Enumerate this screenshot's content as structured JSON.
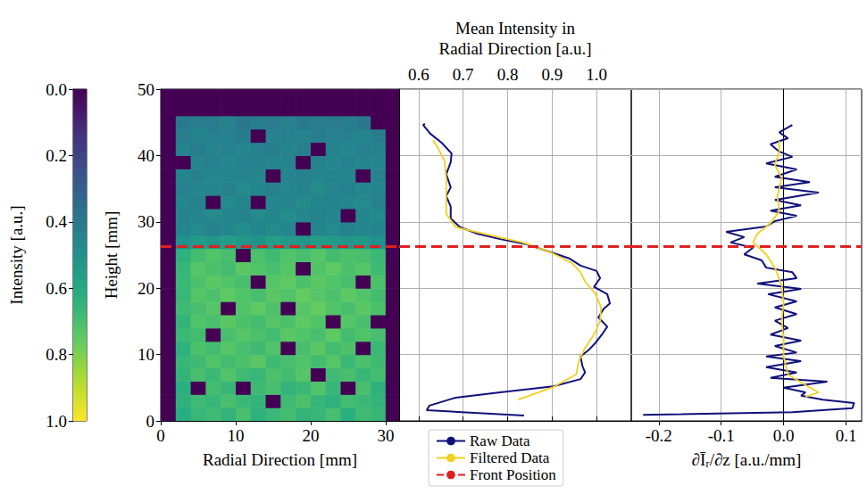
{
  "chart_data": [
    {
      "type": "heatmap",
      "xlabel": "Radial Direction [mm]",
      "ylabel": "Height [mm]",
      "xlim": [
        0,
        31.8
      ],
      "ylim": [
        0,
        50
      ],
      "xticks": [
        0,
        10,
        20,
        30
      ],
      "yticks": [
        0,
        10,
        20,
        30,
        40,
        50
      ],
      "x": [
        1,
        3,
        5,
        7,
        9,
        11,
        13,
        15,
        17,
        19,
        21,
        23,
        25,
        27,
        29,
        31
      ],
      "y": [
        1,
        3,
        5,
        7,
        9,
        11,
        13,
        15,
        17,
        19,
        21,
        23,
        25,
        27,
        29,
        31,
        33,
        35,
        37,
        39,
        41,
        43,
        45,
        47,
        49
      ],
      "values": [
        [
          0,
          0.62,
          0.66,
          0.68,
          0.65,
          0.7,
          0.64,
          0.67,
          0.69,
          0.65,
          0.66,
          0.7,
          0.63,
          0.68,
          0.66,
          0
        ],
        [
          0,
          0.64,
          0.68,
          0.66,
          0.7,
          0.67,
          0.65,
          0,
          0.68,
          0.71,
          0.66,
          0.64,
          0.69,
          0.67,
          0.65,
          0
        ],
        [
          0,
          0.63,
          0,
          0.69,
          0.66,
          0,
          0.68,
          0.7,
          0.65,
          0.67,
          0.72,
          0.66,
          0,
          0.7,
          0.64,
          0
        ],
        [
          0,
          0.65,
          0.7,
          0.67,
          0.72,
          0.68,
          0.66,
          0.71,
          0.69,
          0.73,
          0,
          0.68,
          0.7,
          0.66,
          0.69,
          0
        ],
        [
          0,
          0.66,
          0.68,
          0.72,
          0.69,
          0.71,
          0.74,
          0.68,
          0.7,
          0.72,
          0.69,
          0.73,
          0.67,
          0.71,
          0.68,
          0
        ],
        [
          0,
          0.64,
          0.71,
          0.69,
          0.73,
          0.7,
          0.68,
          0.72,
          0,
          0.7,
          0.74,
          0.69,
          0.71,
          0,
          0.67,
          0
        ],
        [
          0,
          0.67,
          0.69,
          0,
          0.7,
          0.73,
          0.71,
          0.69,
          0.74,
          0.72,
          0.7,
          0.75,
          0.69,
          0.72,
          0.7,
          0
        ],
        [
          0,
          0.65,
          0.72,
          0.7,
          0.74,
          0.71,
          0.69,
          0.73,
          0.71,
          0.75,
          0.72,
          0,
          0.73,
          0.7,
          0,
          0
        ],
        [
          0,
          0.68,
          0.7,
          0.73,
          0,
          0.72,
          0.75,
          0.71,
          0,
          0.73,
          0.76,
          0.72,
          0.7,
          0.74,
          0.71,
          0
        ],
        [
          0,
          0.66,
          0.73,
          0.71,
          0.75,
          0.72,
          0.7,
          0.74,
          0.72,
          0.76,
          0.73,
          0.71,
          0.75,
          0.72,
          0.69,
          0
        ],
        [
          0,
          0.67,
          0.71,
          0.74,
          0.72,
          0.7,
          0,
          0.73,
          0.75,
          0.71,
          0.74,
          0.72,
          0.7,
          0,
          0.71,
          0
        ],
        [
          0,
          0.66,
          0.73,
          0.71,
          0.69,
          0.74,
          0.72,
          0.7,
          0.73,
          0,
          0.72,
          0.75,
          0.71,
          0.73,
          0.68,
          0
        ],
        [
          0,
          0.64,
          0.69,
          0.72,
          0.7,
          0,
          0.71,
          0.68,
          0.72,
          0.7,
          0.73,
          0.69,
          0.71,
          0.7,
          0.67,
          0
        ],
        [
          0,
          0.5,
          0.54,
          0.52,
          0.55,
          0.53,
          0.51,
          0.56,
          0.53,
          0.52,
          0.55,
          0.54,
          0.52,
          0.53,
          0.5,
          0
        ],
        [
          0,
          0.45,
          0.47,
          0.44,
          0.46,
          0.48,
          0.45,
          0.47,
          0.46,
          0,
          0.45,
          0.47,
          0.44,
          0.46,
          0.45,
          0
        ],
        [
          0,
          0.44,
          0.46,
          0.47,
          0.45,
          0.44,
          0.47,
          0.45,
          0.48,
          0.46,
          0.44,
          0.46,
          0,
          0.45,
          0.47,
          0
        ],
        [
          0,
          0.46,
          0.44,
          0,
          0.47,
          0.45,
          0,
          0.46,
          0.44,
          0.47,
          0.45,
          0.44,
          0.46,
          0.47,
          0.44,
          0
        ],
        [
          0,
          0.43,
          0.46,
          0.45,
          0.44,
          0.47,
          0.45,
          0.43,
          0.46,
          0.44,
          0.47,
          0.45,
          0.43,
          0.46,
          0.45,
          0
        ],
        [
          0,
          0.45,
          0.43,
          0.46,
          0.45,
          0.44,
          0.46,
          0,
          0.45,
          0.43,
          0.46,
          0.44,
          0.45,
          0,
          0.44,
          0
        ],
        [
          0,
          0,
          0.45,
          0.43,
          0.46,
          0.44,
          0.43,
          0.45,
          0.44,
          0,
          0.44,
          0.46,
          0.43,
          0.45,
          0.46,
          0
        ],
        [
          0,
          0.44,
          0.42,
          0.45,
          0.43,
          0.46,
          0.44,
          0.42,
          0.45,
          0.43,
          0,
          0.44,
          0.46,
          0.43,
          0.44,
          0
        ],
        [
          0,
          0.42,
          0.45,
          0.43,
          0.44,
          0.42,
          0,
          0.44,
          0.43,
          0.45,
          0.42,
          0.44,
          0.43,
          0.45,
          0.42,
          0
        ],
        [
          0,
          0.4,
          0.42,
          0.41,
          0.43,
          0.4,
          0.42,
          0.41,
          0.43,
          0.4,
          0.42,
          0.41,
          0.42,
          0.4,
          0,
          0
        ],
        [
          0,
          0,
          0,
          0,
          0,
          0,
          0,
          0,
          0,
          0,
          0,
          0,
          0,
          0,
          0,
          0
        ],
        [
          0,
          0,
          0,
          0,
          0,
          0,
          0,
          0,
          0,
          0,
          0,
          0,
          0,
          0,
          0,
          0
        ]
      ],
      "colorbar": {
        "label": "Intensity [a.u.]",
        "range": [
          0,
          1
        ],
        "ticks": [
          {
            "value": 0,
            "label": "0.0"
          },
          0.2,
          0.4,
          0.6,
          0.8,
          {
            "value": 1,
            "label": "1.0"
          }
        ]
      },
      "series": [
        {
          "name": "Front Position",
          "type": "hline",
          "color": "#e02020",
          "line_style": "dashed",
          "values": [
            26.3
          ]
        }
      ]
    },
    {
      "type": "line",
      "xlabel": "Mean Intensity in Radial Direction [a.u.]",
      "xlim": [
        0.556,
        1.078
      ],
      "ylim": [
        0,
        50
      ],
      "xticks": [
        0.6,
        0.7,
        0.8,
        0.9,
        {
          "value": 1,
          "label": "1.0"
        }
      ],
      "yticks": [
        0,
        10,
        20,
        30,
        40,
        50
      ],
      "tick_labels": "x",
      "grid": true,
      "legend": "bottom",
      "series": [
        {
          "name": "Raw Data",
          "color": "#10107a",
          "line_style": "solid",
          "x": [
            0.837,
            0.618,
            0.624,
            0.683,
            0.783,
            0.903,
            0.964,
            0.974,
            0.968,
            0.964,
            0.984,
            0.998,
            1.014,
            1.024,
            1.004,
            1.016,
            1.03,
            1.024,
            0.994,
            1.008,
            1.0,
            0.964,
            0.938,
            0.894,
            0.843,
            0.783,
            0.733,
            0.693,
            0.672,
            0.672,
            0.662,
            0.672,
            0.662,
            0.672,
            0.674,
            0.652,
            0.626,
            0.61,
            0.614
          ],
          "y": [
            0.8,
            1.6,
            2.3,
            3.5,
            4.3,
            5.2,
            6.3,
            7.3,
            8.3,
            9.7,
            10.8,
            11.8,
            13.2,
            14.2,
            15.6,
            16.9,
            17.7,
            19.1,
            20.2,
            21.5,
            22.6,
            23.4,
            24.5,
            25.5,
            26.6,
            27.4,
            28.2,
            29.2,
            30.5,
            32.3,
            33.9,
            35.2,
            37.2,
            39.0,
            40.3,
            41.9,
            43.3,
            44.6,
            44.8
          ]
        },
        {
          "name": "Filtered Data",
          "color": "#f2cf1f",
          "line_style": "solid",
          "x": [
            0.824,
            0.903,
            0.954,
            0.96,
            0.974,
            0.994,
            1.008,
            1.01,
            0.998,
            0.974,
            0.964,
            0.944,
            0.894,
            0.833,
            0.753,
            0.683,
            0.662,
            0.662,
            0.662,
            0.658,
            0.642,
            0.632
          ],
          "y": [
            3.2,
            5.1,
            7.0,
            9.0,
            11.0,
            13.0,
            15.0,
            17.1,
            19.1,
            21.0,
            22.4,
            23.8,
            25.5,
            26.9,
            28.1,
            29.2,
            31.2,
            33.9,
            36.6,
            39.2,
            41.3,
            42.3
          ]
        },
        {
          "name": "Front Position",
          "type": "hline",
          "color": "#e02020",
          "line_style": "dashed",
          "values": [
            26.3
          ]
        }
      ]
    },
    {
      "type": "line",
      "xlabel": "∂Īᵣ/∂z [a.u./mm]",
      "xlim": [
        -0.244,
        0.125
      ],
      "ylim": [
        0,
        50
      ],
      "xticks": [
        -0.2,
        -0.1,
        {
          "value": 0,
          "label": "0.0"
        },
        0.1
      ],
      "yticks": [
        0,
        10,
        20,
        30,
        40,
        50
      ],
      "tick_labels": "x",
      "grid": true,
      "series": [
        {
          "name": "Raw Data",
          "color": "#10107a",
          "line_style": "solid",
          "x": [
            -0.225,
            0.014,
            0.11,
            0.113,
            0.063,
            0.028,
            0.035,
            0.0,
            0.07,
            -0.021,
            0.021,
            -0.028,
            0.028,
            -0.028,
            0.021,
            -0.014,
            0.028,
            -0.021,
            0.007,
            -0.014,
            0.021,
            -0.014,
            0.021,
            -0.025,
            0.028,
            -0.042,
            0.021,
            0.014,
            -0.028,
            -0.035,
            -0.063,
            -0.049,
            -0.085,
            -0.063,
            -0.092,
            -0.028,
            -0.014,
            0.021,
            -0.021,
            0.028,
            -0.014,
            0.056,
            -0.014,
            0.042,
            -0.014,
            0.021,
            -0.028,
            0.014,
            -0.007,
            -0.021,
            0.007,
            -0.007,
            0.014
          ],
          "y": [
            0.9,
            1.3,
            1.9,
            2.7,
            3.2,
            3.8,
            4.3,
            5.0,
            5.9,
            6.5,
            7.3,
            8.1,
            9.0,
            9.7,
            10.3,
            11.3,
            12.1,
            13.0,
            14.0,
            15.1,
            16.1,
            17.1,
            18.0,
            19.1,
            19.9,
            20.7,
            21.5,
            22.4,
            23.1,
            24.2,
            25.1,
            26.1,
            26.9,
            27.7,
            28.5,
            29.3,
            30.1,
            30.9,
            31.7,
            32.5,
            33.3,
            34.4,
            35.2,
            36.0,
            36.8,
            37.9,
            38.8,
            39.8,
            40.6,
            41.7,
            42.6,
            43.5,
            44.6
          ]
        },
        {
          "name": "Filtered Data",
          "color": "#f2cf1f",
          "line_style": "solid",
          "x": [
            0.035,
            0.056,
            0.035,
            0.007,
            0.0,
            0.0,
            -0.003,
            0.0,
            -0.003,
            -0.014,
            -0.028,
            -0.049,
            -0.042,
            -0.021,
            -0.007,
            -0.01,
            -0.003,
            -0.014,
            -0.007,
            -0.007
          ],
          "y": [
            3.6,
            4.3,
            5.4,
            7.0,
            9.7,
            12.4,
            15.1,
            17.7,
            20.4,
            23.1,
            25.1,
            26.9,
            28.2,
            29.8,
            31.6,
            33.9,
            36.6,
            38.6,
            40.6,
            42.2
          ]
        },
        {
          "name": "Front Position",
          "type": "hline",
          "color": "#e02020",
          "line_style": "dashed",
          "values": [
            26.3
          ]
        }
      ]
    }
  ]
}
